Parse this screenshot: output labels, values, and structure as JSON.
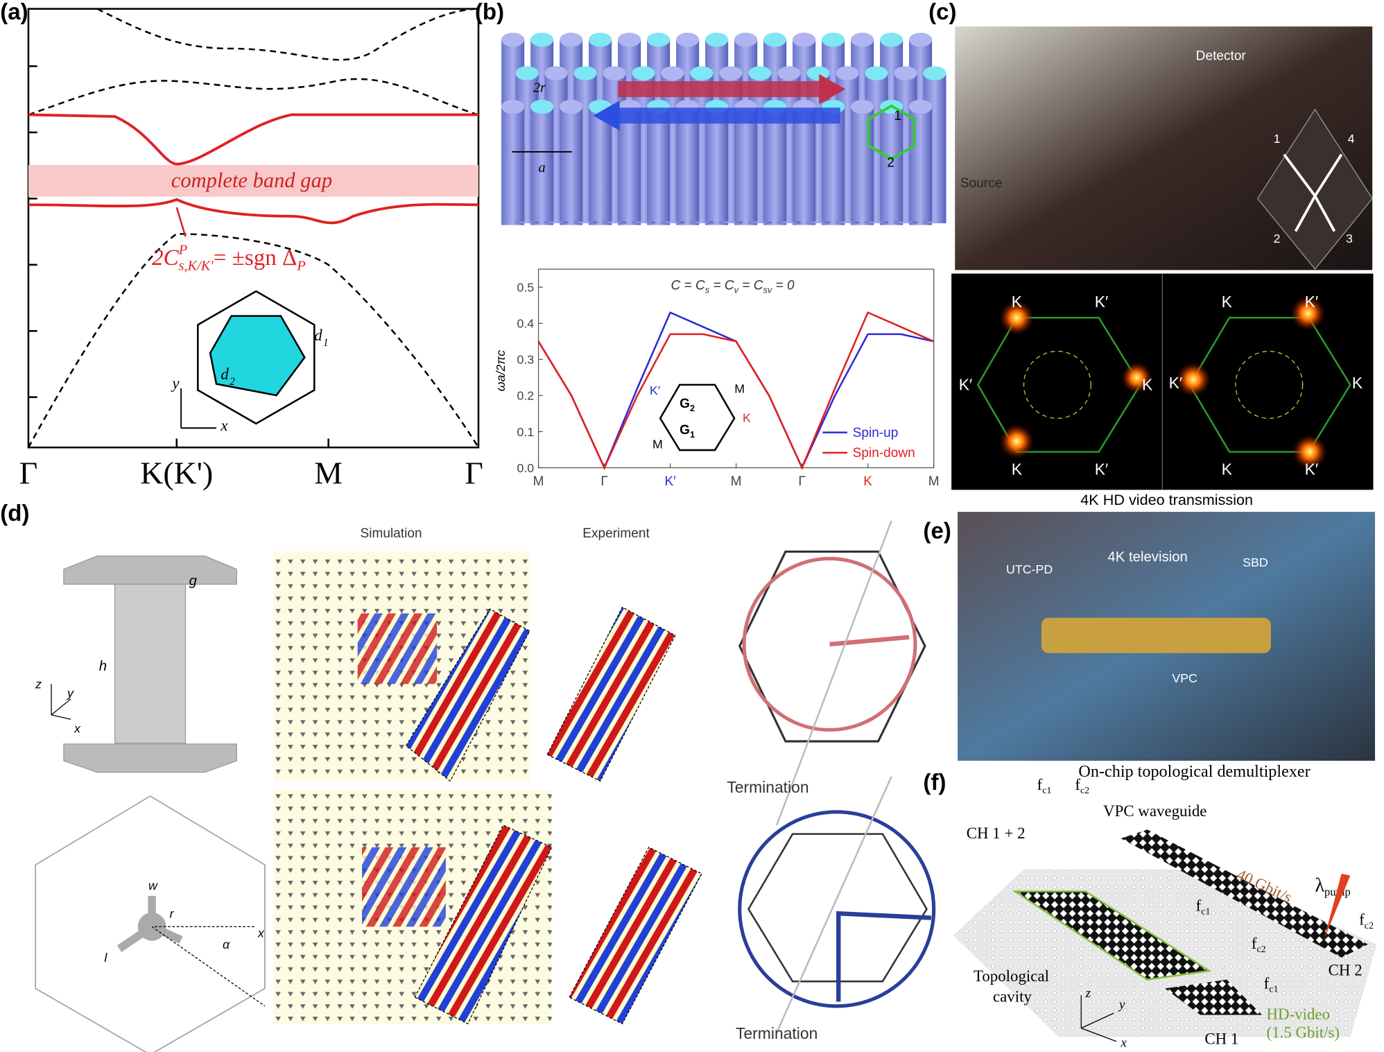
{
  "panels": {
    "a": {
      "label": "(a)",
      "gap": "complete band gap",
      "ticks": [
        "Γ",
        "K(K')",
        "M",
        "Γ"
      ],
      "chern": {
        "main": "2C",
        "sup": "P",
        "sub": "s,K/K′",
        "rest": "= ±sgn Δ",
        "rest_sub": "P"
      },
      "inset": {
        "d1": "d",
        "d1_sub": "1",
        "d2": "d",
        "d2_sub": "2",
        "y": "y",
        "x": "x"
      }
    },
    "b": {
      "label": "(b)",
      "r": "2r",
      "a": "a",
      "n1": "1",
      "n2": "2"
    },
    "c": {
      "label": "(c)",
      "detector": "Detector",
      "source": "Source",
      "corners": [
        "1",
        "4",
        "2",
        "3"
      ],
      "left": [
        "K",
        "K′",
        "K′",
        "K",
        "K",
        "K′"
      ],
      "right": [
        "K",
        "K′",
        "K′",
        "K",
        "K",
        "K′"
      ],
      "caption": "4K HD video transmission"
    },
    "d": {
      "label": "(d)",
      "simulation": "Simulation",
      "experiment": "Experiment",
      "termination": [
        "Termination",
        "Termination"
      ],
      "unit": [
        "g",
        "h",
        "z",
        "y",
        "x"
      ],
      "tripod": [
        "w",
        "r",
        "l",
        "α",
        "x"
      ]
    },
    "e": {
      "label": "(e)",
      "tv": "4K television",
      "utc": "UTC-PD",
      "sbd": "SBD",
      "vpc": "VPC"
    },
    "f": {
      "label": "(f)",
      "title": "On-chip topological demultiplexer",
      "waveguide": "VPC waveguide",
      "ch12": "CH 1 + 2",
      "rate": "40 Gbit/s",
      "pump": "λ",
      "pump_sub": "pump",
      "f": "f",
      "c1": "c1",
      "c2": "c2",
      "ch2": "CH 2",
      "ch1": "CH 1",
      "cavity": [
        "Topological",
        "cavity"
      ],
      "video": [
        "HD-video",
        "(1.5 Gbit/s)"
      ],
      "axes": [
        "z",
        "y",
        "x"
      ]
    }
  },
  "chart_data": {
    "type": "line",
    "ylabel": "ωa/2πc",
    "annotation": [
      "C = C",
      "s",
      " = C",
      "v",
      " = C",
      "sv",
      " = 0"
    ],
    "x": [
      0,
      0.5,
      1,
      1.5,
      2,
      2.5,
      3,
      3.5,
      4,
      4.5,
      5,
      5.5,
      6
    ],
    "xlim": [
      0,
      6
    ],
    "xticks": [
      {
        "value": 0,
        "label": "M"
      },
      {
        "value": 1,
        "label": "Γ"
      },
      {
        "value": 2,
        "label": "K′",
        "color": "#2233cc"
      },
      {
        "value": 3,
        "label": "M"
      },
      {
        "value": 4,
        "label": "Γ"
      },
      {
        "value": 5,
        "label": "K",
        "color": "#dd2222"
      },
      {
        "value": 6,
        "label": "M"
      }
    ],
    "ylim": [
      0,
      0.55
    ],
    "yticks": [
      {
        "value": 0,
        "label": "0.0"
      },
      {
        "value": 0.1,
        "label": "0.1"
      },
      {
        "value": 0.2,
        "label": "0.2"
      },
      {
        "value": 0.3,
        "label": "0.3"
      },
      {
        "value": 0.4,
        "label": "0.4"
      },
      {
        "value": 0.5,
        "label": "0.5"
      }
    ],
    "series": [
      {
        "name": "Spin-up",
        "color": "#2a2ad8",
        "values": [
          0.35,
          0.2,
          0,
          0.22,
          0.43,
          0.39,
          0.35,
          0.2,
          0,
          0.2,
          0.37,
          0.37,
          0.35
        ]
      },
      {
        "name": "Spin-down",
        "color": "#e02020",
        "values": [
          0.35,
          0.2,
          0,
          0.2,
          0.37,
          0.37,
          0.35,
          0.2,
          0,
          0.22,
          0.43,
          0.39,
          0.35
        ]
      }
    ],
    "inset_labels": [
      "K′",
      "K",
      "M",
      "M",
      "G",
      "2",
      "G",
      "1"
    ]
  }
}
